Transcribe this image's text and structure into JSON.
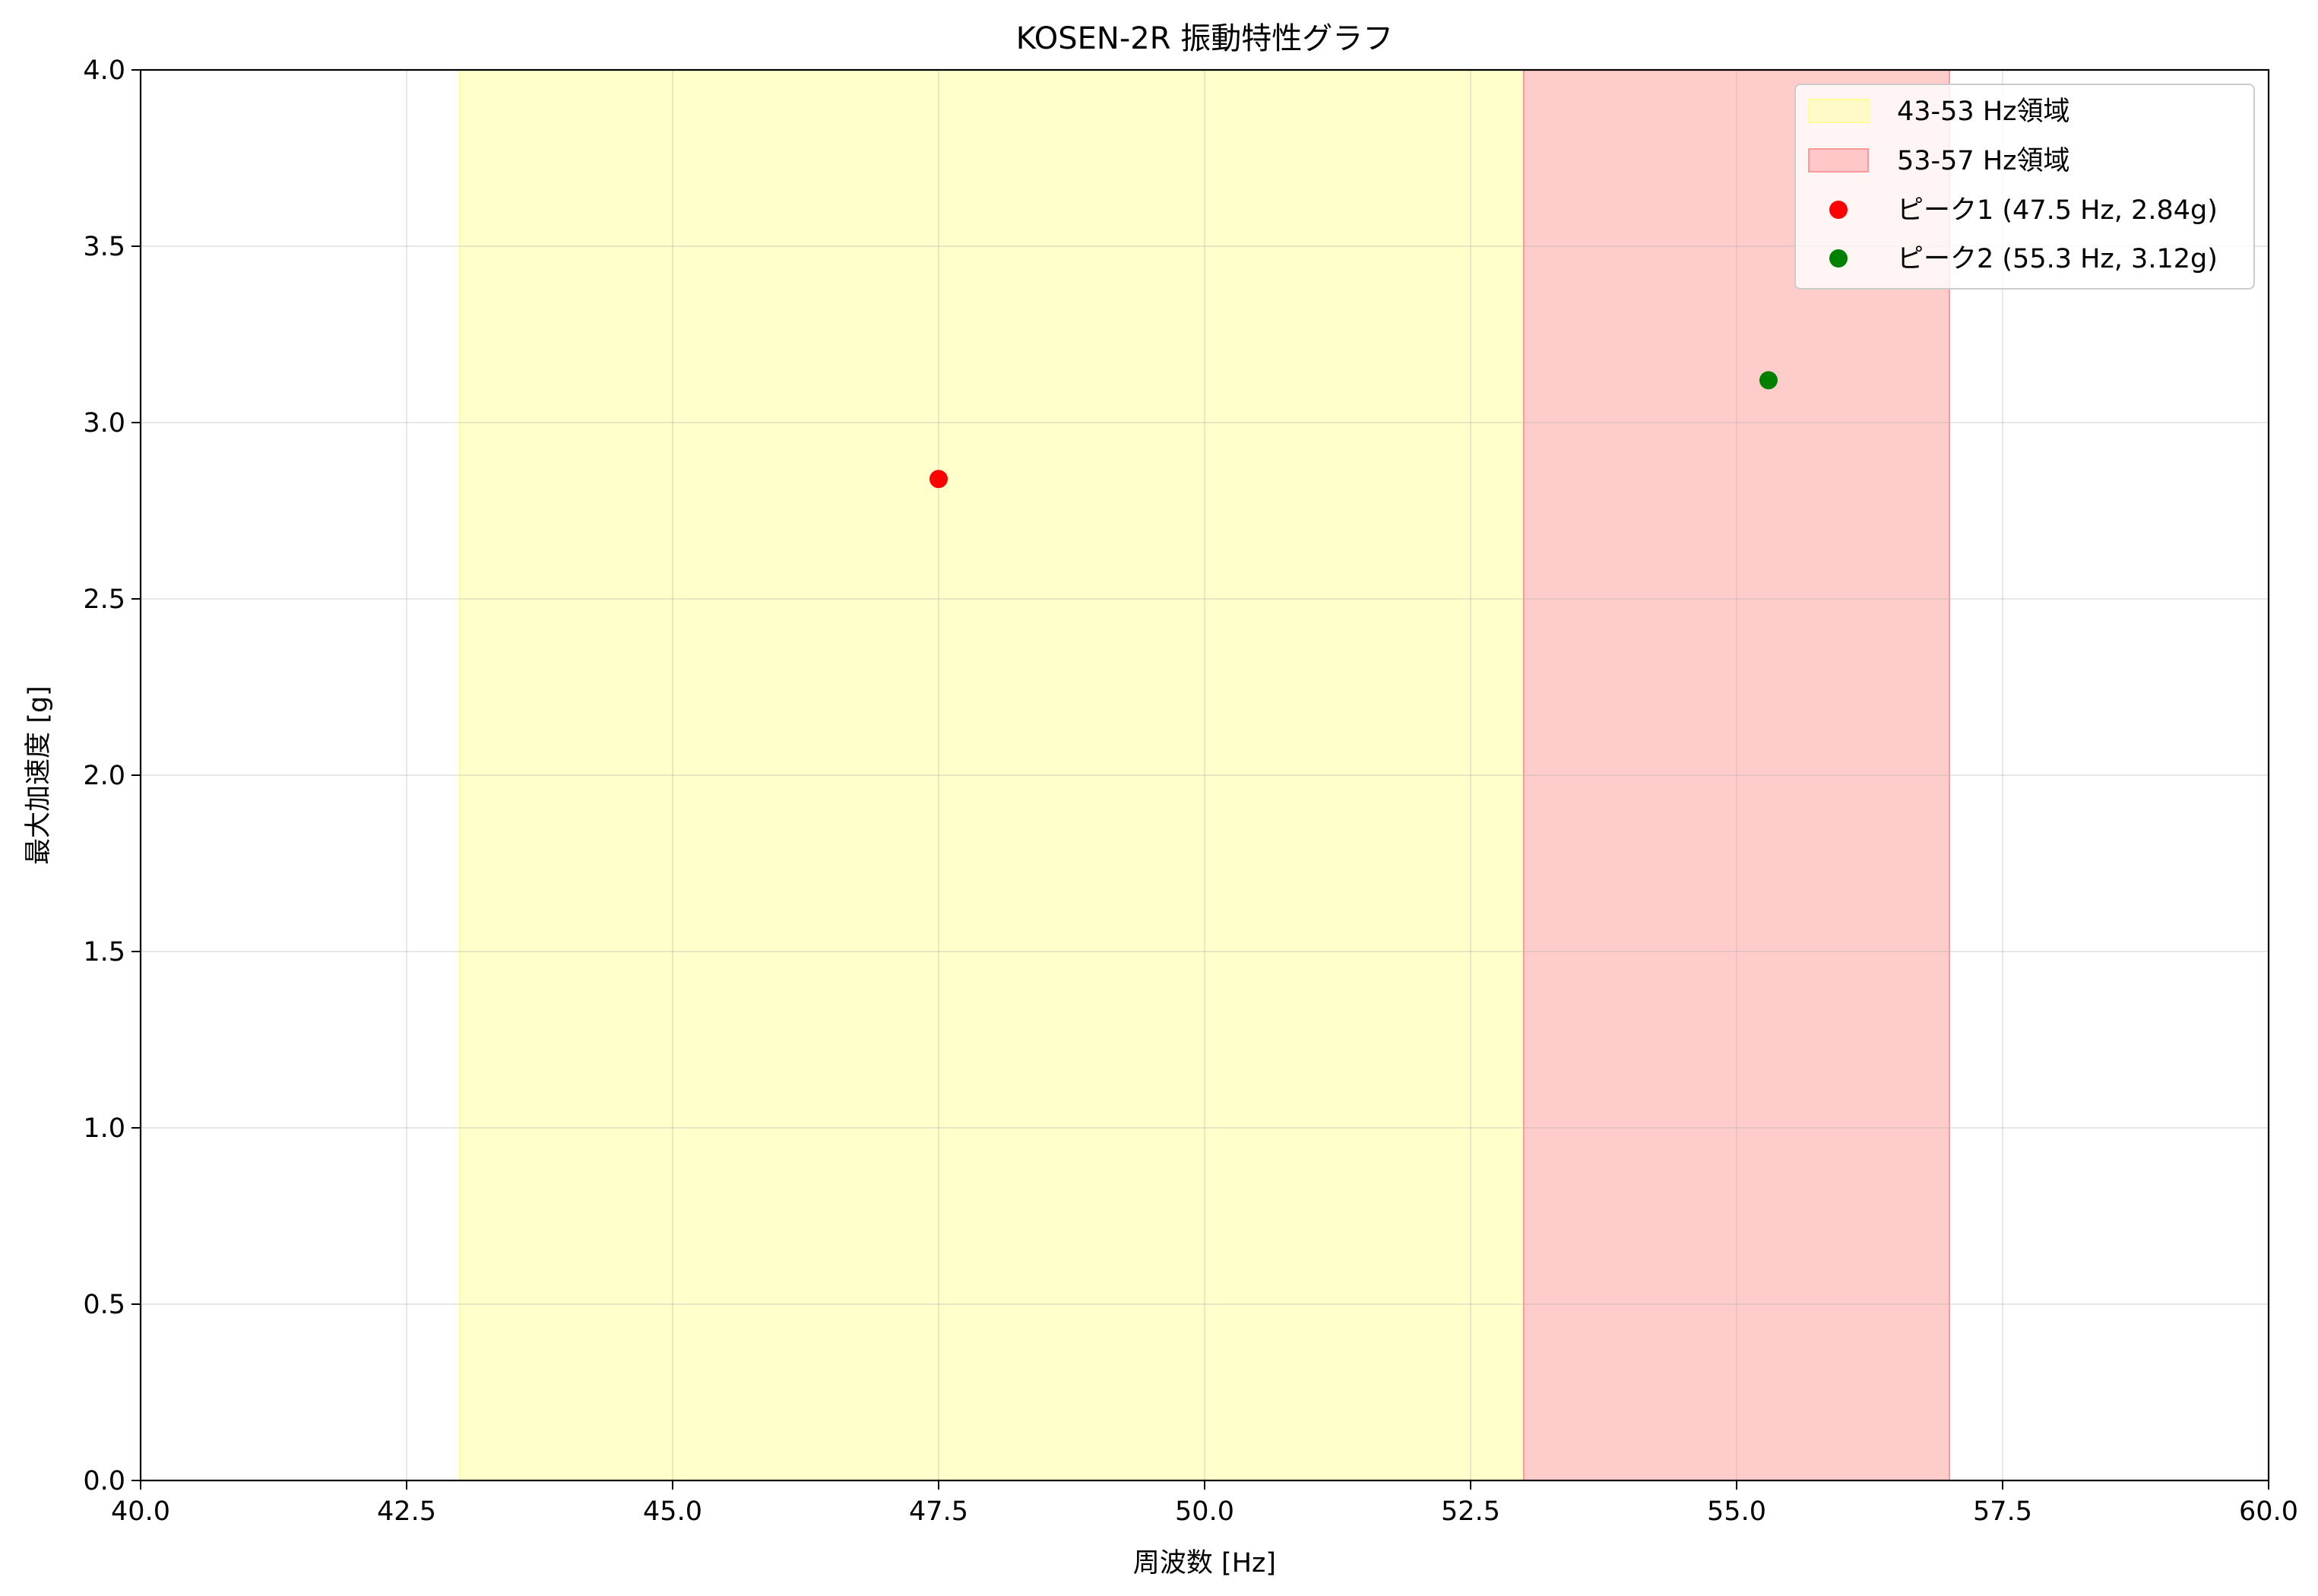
{
  "chart_data": {
    "type": "scatter",
    "title": "KOSEN-2R 振動特性グラフ",
    "xlabel": "周波数 [Hz]",
    "ylabel": "最大加速度 [g]",
    "xlim": [
      40,
      60
    ],
    "ylim": [
      0,
      4
    ],
    "xticks": [
      "40.0",
      "42.5",
      "45.0",
      "47.5",
      "50.0",
      "52.5",
      "55.0",
      "57.5",
      "60.0"
    ],
    "yticks": [
      "0.0",
      "0.5",
      "1.0",
      "1.5",
      "2.0",
      "2.5",
      "3.0",
      "3.5",
      "4.0"
    ],
    "grid": true,
    "legend_position": "top-right",
    "bands": [
      {
        "label": "43-53 Hz領域",
        "x_range": [
          43,
          53
        ],
        "color": "#ffff99",
        "opacity": 0.5
      },
      {
        "label": "53-57 Hz領域",
        "x_range": [
          53,
          57
        ],
        "color": "#ff9999",
        "opacity": 0.5
      }
    ],
    "series": [
      {
        "name": "ピーク1 (47.5 Hz, 2.84g)",
        "x": [
          47.5
        ],
        "y": [
          2.84
        ],
        "color": "#ff0000"
      },
      {
        "name": "ピーク2 (55.3 Hz, 3.12g)",
        "x": [
          55.3
        ],
        "y": [
          3.12
        ],
        "color": "#008000"
      }
    ]
  }
}
